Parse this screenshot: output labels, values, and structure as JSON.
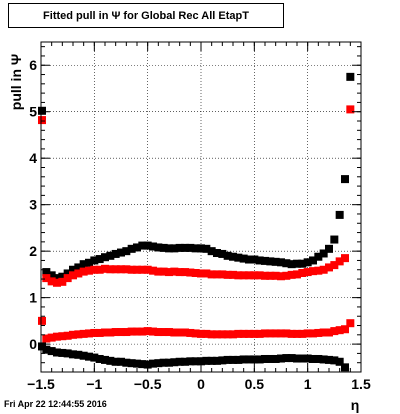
{
  "title": "Fitted pull in  Ψ  for Global Rec All EtapT",
  "timestamp": "Fri Apr 22 12:44:55 2016",
  "chart_data": {
    "type": "scatter",
    "title": "Fitted pull in  Ψ  for Global Rec All EtapT",
    "xlabel": "η",
    "ylabel": "pull in  Ψ",
    "xlim": [
      -1.5,
      1.5
    ],
    "ylim": [
      -0.6,
      6.5
    ],
    "grid": true,
    "x_ticks": [
      -1.5,
      -1,
      -0.5,
      0,
      0.5,
      1,
      1.5
    ],
    "x_tick_labels": [
      "−1.5",
      "−1",
      "−0.5",
      "0",
      "0.5",
      "1",
      "1.5"
    ],
    "y_ticks": [
      0,
      1,
      2,
      3,
      4,
      5,
      6
    ],
    "y_tick_labels": [
      "0",
      "1",
      "2",
      "3",
      "4",
      "5",
      "6"
    ],
    "x": [
      -1.45,
      -1.4,
      -1.35,
      -1.3,
      -1.25,
      -1.2,
      -1.15,
      -1.1,
      -1.05,
      -1.0,
      -0.95,
      -0.9,
      -0.85,
      -0.8,
      -0.75,
      -0.7,
      -0.65,
      -0.6,
      -0.55,
      -0.5,
      -0.45,
      -0.4,
      -0.35,
      -0.3,
      -0.25,
      -0.2,
      -0.15,
      -0.1,
      -0.05,
      0.0,
      0.05,
      0.1,
      0.15,
      0.2,
      0.25,
      0.3,
      0.35,
      0.4,
      0.45,
      0.5,
      0.55,
      0.6,
      0.65,
      0.7,
      0.75,
      0.8,
      0.85,
      0.9,
      0.95,
      1.0,
      1.05,
      1.1,
      1.15,
      1.2,
      1.25,
      1.3,
      1.35,
      1.4,
      1.45
    ],
    "series": [
      {
        "color": "#000000",
        "marker": "square",
        "values": [
          1.55,
          1.48,
          1.42,
          1.45,
          1.52,
          1.6,
          1.65,
          1.72,
          1.75,
          1.8,
          1.83,
          1.87,
          1.9,
          1.94,
          1.97,
          2.0,
          2.05,
          2.08,
          2.12,
          2.12,
          2.1,
          2.08,
          2.07,
          2.06,
          2.06,
          2.07,
          2.07,
          2.07,
          2.06,
          2.06,
          2.05,
          2.0,
          1.96,
          1.94,
          1.9,
          1.88,
          1.86,
          1.84,
          1.82,
          1.82,
          1.8,
          1.79,
          1.78,
          1.77,
          1.76,
          1.74,
          1.72,
          1.73,
          1.73,
          1.76,
          1.8,
          1.88,
          1.95,
          2.05,
          2.25,
          2.78,
          3.55,
          5.75,
          null
        ]
      },
      {
        "color": "#ff0000",
        "marker": "square",
        "values": [
          1.42,
          1.35,
          1.32,
          1.34,
          1.42,
          1.48,
          1.52,
          1.56,
          1.58,
          1.6,
          1.6,
          1.62,
          1.61,
          1.61,
          1.61,
          1.61,
          1.6,
          1.6,
          1.6,
          1.6,
          1.58,
          1.56,
          1.56,
          1.55,
          1.56,
          1.55,
          1.55,
          1.54,
          1.53,
          1.52,
          1.52,
          1.5,
          1.5,
          1.5,
          1.49,
          1.49,
          1.48,
          1.48,
          1.48,
          1.48,
          1.48,
          1.47,
          1.47,
          1.47,
          1.46,
          1.47,
          1.49,
          1.5,
          1.53,
          1.55,
          1.57,
          1.58,
          1.6,
          1.65,
          1.7,
          1.78,
          1.85,
          5.05,
          null
        ]
      },
      {
        "color": "#ff0000",
        "marker": "square",
        "values": [
          0.12,
          0.14,
          0.16,
          0.17,
          0.18,
          0.2,
          0.21,
          0.22,
          0.23,
          0.24,
          0.24,
          0.25,
          0.25,
          0.26,
          0.26,
          0.26,
          0.27,
          0.27,
          0.27,
          0.28,
          0.27,
          0.26,
          0.26,
          0.26,
          0.25,
          0.25,
          0.25,
          0.24,
          0.23,
          0.22,
          0.22,
          0.21,
          0.21,
          0.21,
          0.21,
          0.21,
          0.22,
          0.22,
          0.22,
          0.22,
          0.22,
          0.23,
          0.23,
          0.23,
          0.23,
          0.23,
          0.22,
          0.22,
          0.22,
          0.23,
          0.23,
          0.24,
          0.25,
          0.25,
          0.28,
          0.3,
          0.32,
          0.45,
          null
        ]
      },
      {
        "color": "#000000",
        "marker": "square",
        "values": [
          -0.12,
          -0.15,
          -0.18,
          -0.19,
          -0.2,
          -0.22,
          -0.23,
          -0.25,
          -0.27,
          -0.29,
          -0.32,
          -0.34,
          -0.36,
          -0.38,
          -0.38,
          -0.4,
          -0.41,
          -0.42,
          -0.43,
          -0.44,
          -0.42,
          -0.41,
          -0.4,
          -0.4,
          -0.39,
          -0.38,
          -0.38,
          -0.37,
          -0.37,
          -0.37,
          -0.36,
          -0.36,
          -0.36,
          -0.35,
          -0.34,
          -0.34,
          -0.34,
          -0.33,
          -0.33,
          -0.33,
          -0.33,
          -0.32,
          -0.32,
          -0.32,
          -0.31,
          -0.3,
          -0.3,
          -0.31,
          -0.31,
          -0.31,
          -0.32,
          -0.32,
          -0.33,
          -0.34,
          -0.35,
          -0.38,
          -0.5,
          null,
          null
        ]
      }
    ],
    "edge_points": [
      {
        "x": -1.45,
        "y": 5.02,
        "color": "#000000"
      },
      {
        "x": -1.45,
        "y": 4.82,
        "color": "#ff0000"
      },
      {
        "x": -1.45,
        "y": 0.5,
        "color": "#ff0000"
      },
      {
        "x": -1.45,
        "y": -0.05,
        "color": "#000000"
      }
    ]
  }
}
